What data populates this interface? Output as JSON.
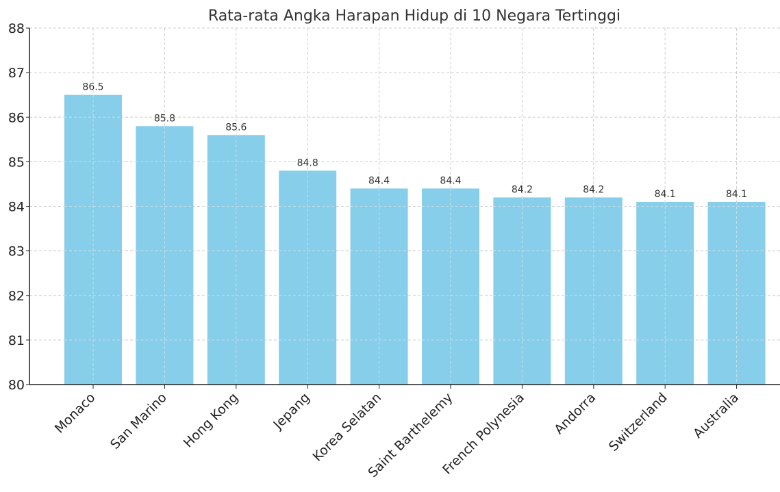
{
  "chart_data": {
    "type": "bar",
    "title": "Rata-rata Angka Harapan Hidup di 10 Negara Tertinggi",
    "xlabel": "",
    "ylabel": "",
    "categories": [
      "Monaco",
      "San Marino",
      "Hong Kong",
      "Jepang",
      "Korea Selatan",
      "Saint Barthelemy",
      "French Polynesia",
      "Andorra",
      "Switzerland",
      "Australia"
    ],
    "values": [
      86.5,
      85.8,
      85.6,
      84.8,
      84.4,
      84.4,
      84.2,
      84.2,
      84.1,
      84.1
    ],
    "data_labels": [
      "86.5",
      "85.8",
      "85.6",
      "84.8",
      "84.4",
      "84.4",
      "84.2",
      "84.2",
      "84.1",
      "84.1"
    ],
    "ylim": [
      80,
      88
    ],
    "yticks": [
      "80",
      "81",
      "82",
      "83",
      "84",
      "85",
      "86",
      "87",
      "88"
    ],
    "grid": true,
    "bar_color": "#87ceeb"
  }
}
